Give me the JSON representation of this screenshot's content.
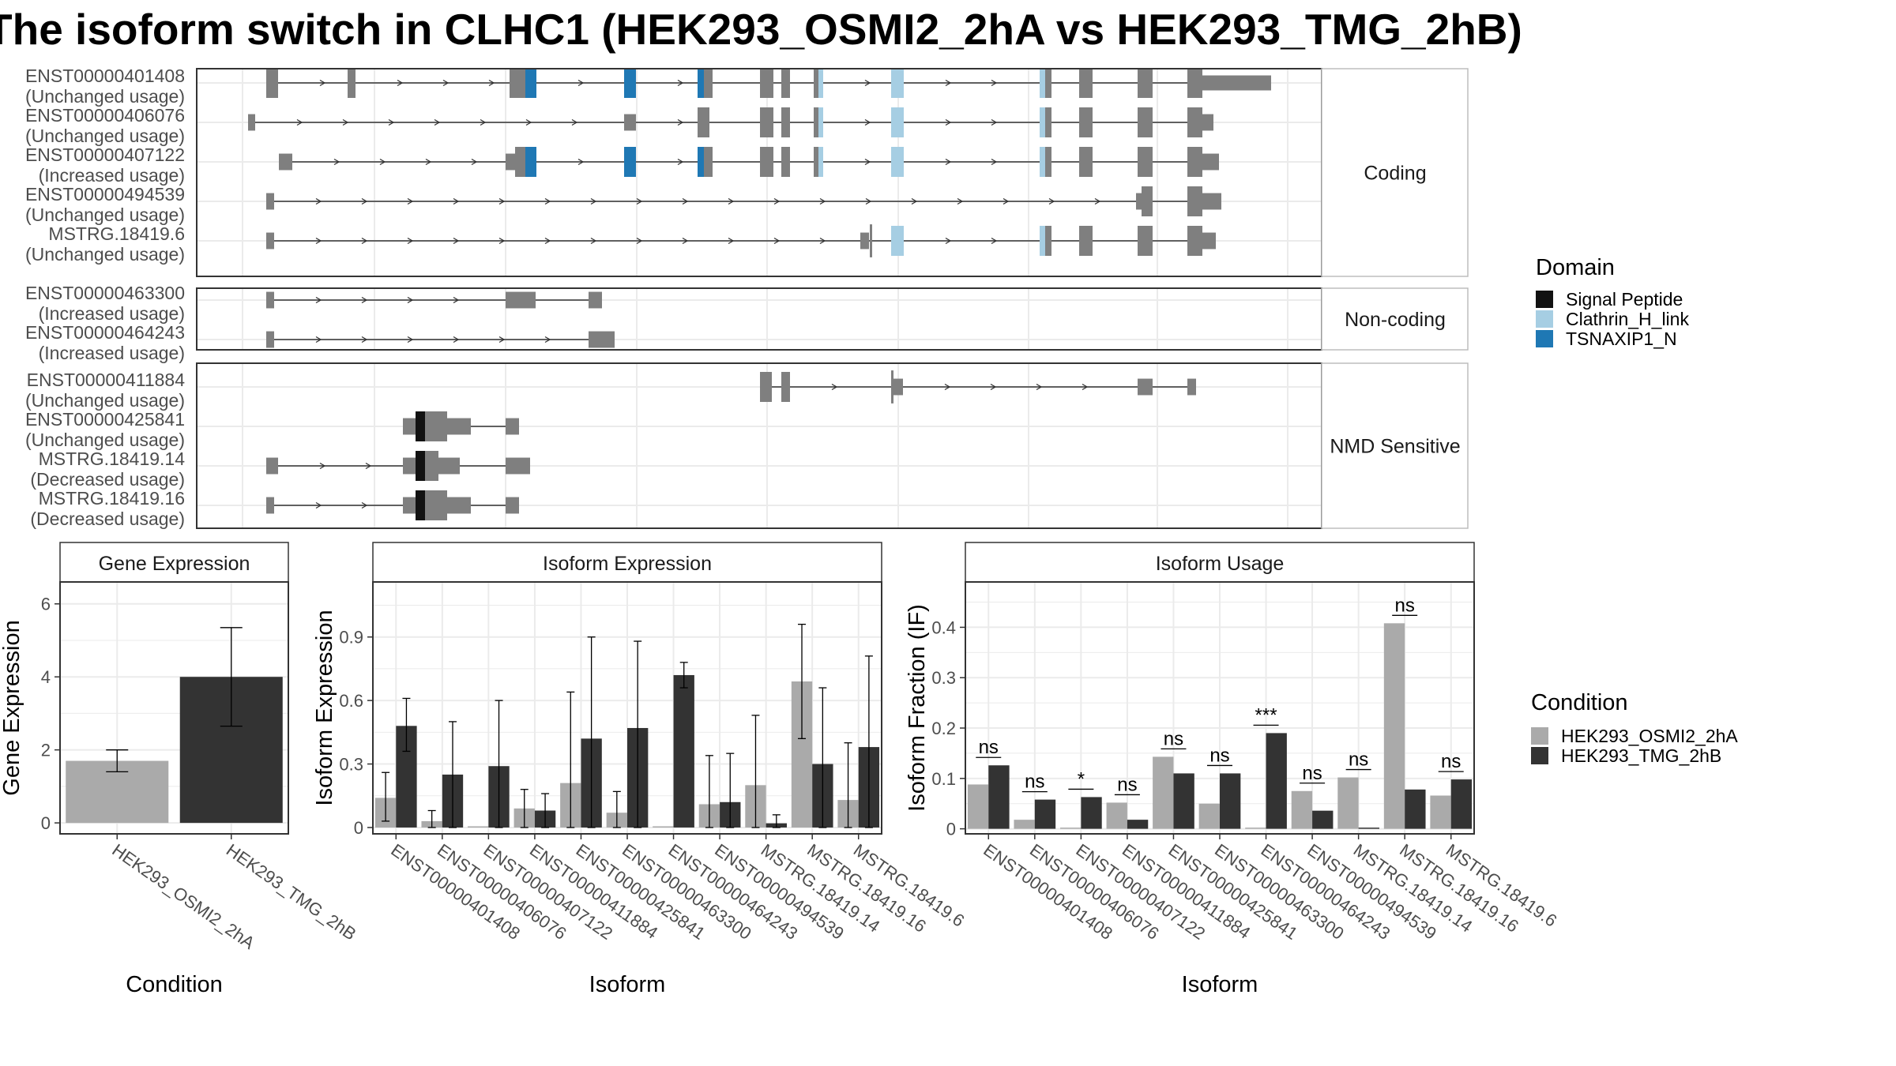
{
  "title": "The isoform switch in CLHC1 (HEK293_OSMI2_2hA vs HEK293_TMG_2hB)",
  "colors": {
    "exon": "#7f7f7f",
    "signal_peptide": "#121212",
    "clathrin": "#a6cee3",
    "tsnaxip": "#1f78b4",
    "cond_a": "#aaaaaa",
    "cond_b": "#333333",
    "grid": "#ebebeb",
    "panel_border": "#333333"
  },
  "domain_legend": {
    "title": "Domain",
    "items": [
      {
        "label": "Signal Peptide",
        "color": "#121212"
      },
      {
        "label": "Clathrin_H_link",
        "color": "#a6cee3"
      },
      {
        "label": "TSNAXIP1_N",
        "color": "#1f78b4"
      }
    ]
  },
  "condition_legend": {
    "title": "Condition",
    "items": [
      {
        "label": "HEK293_OSMI2_2hA",
        "color": "#aaaaaa"
      },
      {
        "label": "HEK293_TMG_2hB",
        "color": "#333333"
      }
    ]
  },
  "structure": {
    "groups": [
      {
        "label": "Coding",
        "isoforms": [
          {
            "id": "ENST00000401408",
            "usage": "(Unchanged usage)"
          },
          {
            "id": "ENST00000406076",
            "usage": "(Unchanged usage)"
          },
          {
            "id": "ENST00000407122",
            "usage": "(Increased usage)"
          },
          {
            "id": "ENST00000494539",
            "usage": "(Unchanged usage)"
          },
          {
            "id": "MSTRG.18419.6",
            "usage": "(Unchanged usage)"
          }
        ]
      },
      {
        "label": "Non-coding",
        "isoforms": [
          {
            "id": "ENST00000463300",
            "usage": "(Increased usage)"
          },
          {
            "id": "ENST00000464243",
            "usage": "(Increased usage)"
          }
        ]
      },
      {
        "label": "NMD Sensitive",
        "isoforms": [
          {
            "id": "ENST00000411884",
            "usage": "(Unchanged usage)"
          },
          {
            "id": "ENST00000425841",
            "usage": "(Unchanged usage)"
          },
          {
            "id": "MSTRG.18419.14",
            "usage": "(Decreased usage)"
          },
          {
            "id": "MSTRG.18419.16",
            "usage": "(Decreased usage)"
          }
        ]
      }
    ]
  },
  "chart_data": [
    {
      "type": "bar",
      "title": "Gene Expression",
      "xlabel": "Condition",
      "ylabel": "Gene Expression",
      "categories": [
        "HEK293_OSMI2_2hA",
        "HEK293_TMG_2hB"
      ],
      "values": [
        1.7,
        4.0
      ],
      "errors": [
        [
          1.4,
          2.0
        ],
        [
          2.65,
          5.35
        ]
      ],
      "ylim": [
        -0.3,
        6.6
      ],
      "yticks": [
        0,
        2,
        4,
        6
      ],
      "grid": true
    },
    {
      "type": "bar",
      "title": "Isoform Expression",
      "xlabel": "Isoform",
      "ylabel": "Isoform Expression",
      "categories": [
        "ENST00000401408",
        "ENST00000406076",
        "ENST00000407122",
        "ENST00000411884",
        "ENST00000425841",
        "ENST00000463300",
        "ENST00000464243",
        "ENST00000494539",
        "MSTRG.18419.14",
        "MSTRG.18419.16",
        "MSTRG.18419.6"
      ],
      "series": [
        {
          "name": "HEK293_OSMI2_2hA",
          "values": [
            0.14,
            0.03,
            0.0,
            0.09,
            0.21,
            0.07,
            0.0,
            0.11,
            0.2,
            0.69,
            0.13
          ],
          "errors": [
            [
              0.03,
              0.26
            ],
            [
              0.0,
              0.08
            ],
            [
              0.0,
              0.0
            ],
            [
              0.0,
              0.18
            ],
            [
              0.0,
              0.64
            ],
            [
              0.0,
              0.17
            ],
            [
              0.0,
              0.0
            ],
            [
              0.0,
              0.34
            ],
            [
              0.0,
              0.53
            ],
            [
              0.42,
              0.96
            ],
            [
              0.0,
              0.4
            ]
          ]
        },
        {
          "name": "HEK293_TMG_2hB",
          "values": [
            0.48,
            0.25,
            0.29,
            0.08,
            0.42,
            0.47,
            0.72,
            0.12,
            0.02,
            0.3,
            0.38
          ],
          "errors": [
            [
              0.36,
              0.61
            ],
            [
              0.0,
              0.5
            ],
            [
              0.0,
              0.6
            ],
            [
              0.0,
              0.16
            ],
            [
              0.0,
              0.9
            ],
            [
              0.0,
              0.88
            ],
            [
              0.66,
              0.78
            ],
            [
              0.0,
              0.35
            ],
            [
              0.0,
              0.06
            ],
            [
              0.0,
              0.66
            ],
            [
              0.0,
              0.81
            ]
          ]
        }
      ],
      "ylim": [
        -0.03,
        1.16
      ],
      "yticks": [
        0.0,
        0.3,
        0.6,
        0.9
      ],
      "grid": true
    },
    {
      "type": "bar",
      "title": "Isoform Usage",
      "xlabel": "Isoform",
      "ylabel": "Isoform Fraction (IF)",
      "categories": [
        "ENST00000401408",
        "ENST00000406076",
        "ENST00000407122",
        "ENST00000411884",
        "ENST00000425841",
        "ENST00000463300",
        "ENST00000464243",
        "ENST00000494539",
        "MSTRG.18419.14",
        "MSTRG.18419.16",
        "MSTRG.18419.6"
      ],
      "series": [
        {
          "name": "HEK293_OSMI2_2hA",
          "values": [
            0.088,
            0.018,
            0.0,
            0.052,
            0.143,
            0.05,
            0.0,
            0.075,
            0.102,
            0.408,
            0.066
          ]
        },
        {
          "name": "HEK293_TMG_2hB",
          "values": [
            0.126,
            0.058,
            0.063,
            0.018,
            0.11,
            0.11,
            0.19,
            0.036,
            0.002,
            0.078,
            0.098
          ]
        }
      ],
      "significance": [
        "ns",
        "ns",
        "*",
        "ns",
        "ns",
        "ns",
        "***",
        "ns",
        "ns",
        "ns",
        "ns"
      ],
      "ylim": [
        -0.01,
        0.49
      ],
      "yticks": [
        0.0,
        0.1,
        0.2,
        0.3,
        0.4
      ],
      "grid": true
    }
  ]
}
